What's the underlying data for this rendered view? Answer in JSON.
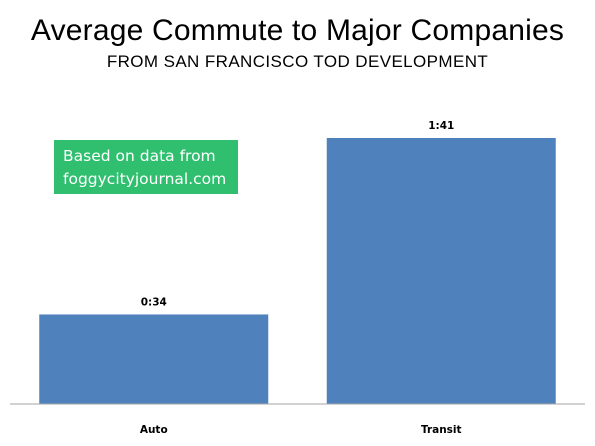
{
  "title": "Average Commute to Major Companies",
  "subtitle": "FROM SAN FRANCISCO TOD DEVELOPMENT",
  "annotation": {
    "line1": "Based on data from",
    "line2": "foggycityjournal.com",
    "color": "#2fbf6f"
  },
  "chart_data": {
    "type": "bar",
    "title": "Average Commute to Major Companies",
    "subtitle": "FROM SAN FRANCISCO TOD DEVELOPMENT",
    "categories": [
      "Auto",
      "Transit"
    ],
    "values": [
      34,
      101
    ],
    "data_labels": [
      "0:34",
      "1:41"
    ],
    "unit": "minutes",
    "ylim": [
      0,
      101
    ],
    "grid": false,
    "legend": "none",
    "bar_color": "#4f81bd",
    "axis_color": "#a6a6a6"
  }
}
